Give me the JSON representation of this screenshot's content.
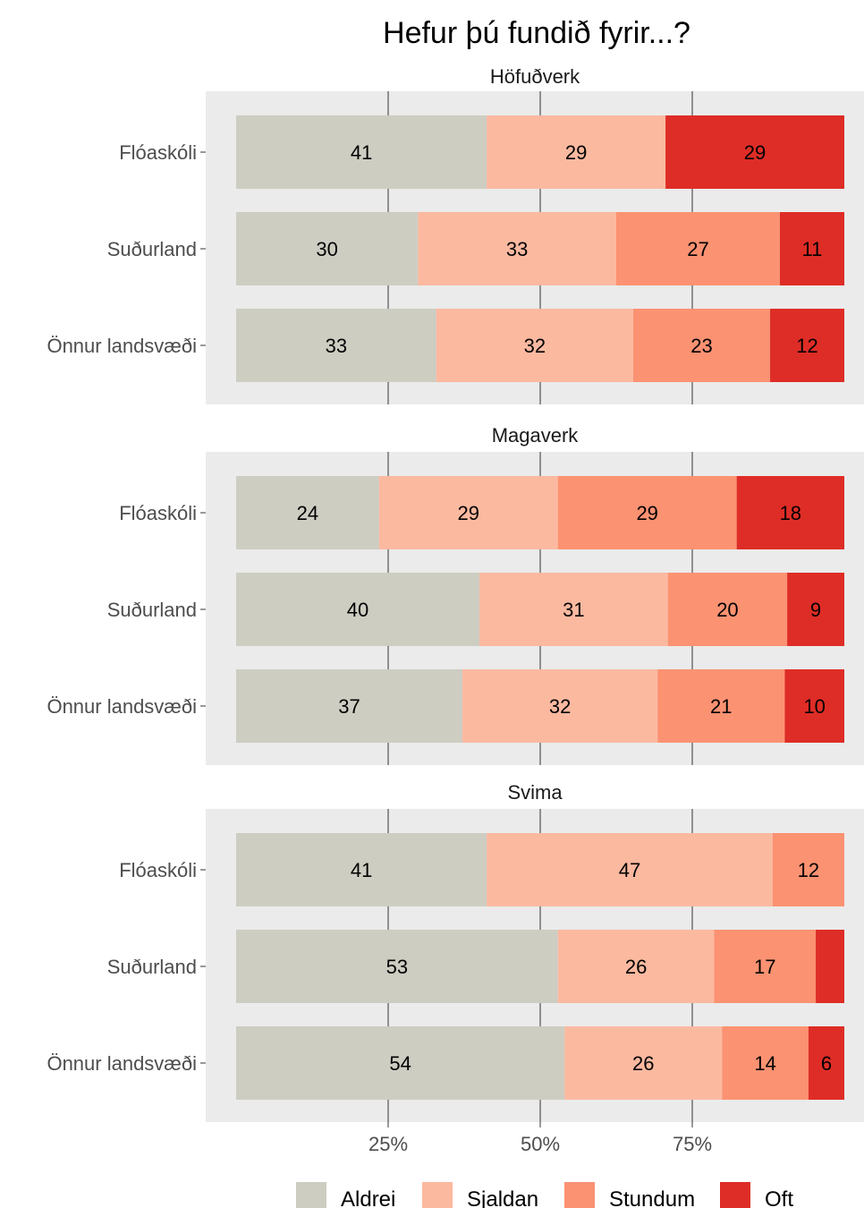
{
  "chart_data": {
    "type": "bar",
    "orientation": "horizontal",
    "stacked": true,
    "title": "Hefur þú fundið fyrir...?",
    "xlabel": "",
    "ylabel": "",
    "xlim": [
      0,
      100
    ],
    "x_ticks": [
      25,
      50,
      75
    ],
    "x_tick_labels": [
      "25%",
      "50%",
      "75%"
    ],
    "grid": true,
    "legend_position": "bottom",
    "categories": [
      "Flóaskóli",
      "Suðurland",
      "Önnur landsvæði"
    ],
    "series_names": [
      "Aldrei",
      "Sjaldan",
      "Stundum",
      "Oft"
    ],
    "series_colors": [
      "#cdcdc2",
      "#fbb9a0",
      "#fb9272",
      "#de2d26"
    ],
    "panels": [
      {
        "title": "Höfuðverk",
        "rows": [
          {
            "label": "Flóaskóli",
            "values": [
              41.2,
              29.4,
              0,
              29.4
            ],
            "labels": [
              "41",
              "29",
              "",
              "29"
            ]
          },
          {
            "label": "Suðurland",
            "values": [
              29.9,
              32.6,
              26.9,
              10.6
            ],
            "labels": [
              "30",
              "33",
              "27",
              "11"
            ]
          },
          {
            "label": "Önnur landsvæði",
            "values": [
              32.9,
              32.4,
              22.5,
              12.2
            ],
            "labels": [
              "33",
              "32",
              "23",
              "12"
            ]
          }
        ]
      },
      {
        "title": "Magaverk",
        "rows": [
          {
            "label": "Flóaskóli",
            "values": [
              23.5,
              29.4,
              29.4,
              17.7
            ],
            "labels": [
              "24",
              "29",
              "29",
              "18"
            ]
          },
          {
            "label": "Suðurland",
            "values": [
              40.0,
              31.0,
              19.6,
              9.4
            ],
            "labels": [
              "40",
              "31",
              "20",
              "9"
            ]
          },
          {
            "label": "Önnur landsvæði",
            "values": [
              37.2,
              32.1,
              20.9,
              9.8
            ],
            "labels": [
              "37",
              "32",
              "21",
              "10"
            ]
          }
        ]
      },
      {
        "title": "Svima",
        "rows": [
          {
            "label": "Flóaskóli",
            "values": [
              41.2,
              47.0,
              11.8,
              0
            ],
            "labels": [
              "41",
              "47",
              "12",
              ""
            ]
          },
          {
            "label": "Suðurland",
            "values": [
              52.9,
              25.7,
              16.7,
              4.7
            ],
            "labels": [
              "53",
              "26",
              "17",
              ""
            ]
          },
          {
            "label": "Önnur landsvæði",
            "values": [
              54.0,
              25.9,
              14.2,
              5.9
            ],
            "labels": [
              "54",
              "26",
              "14",
              "6"
            ]
          }
        ]
      }
    ]
  }
}
